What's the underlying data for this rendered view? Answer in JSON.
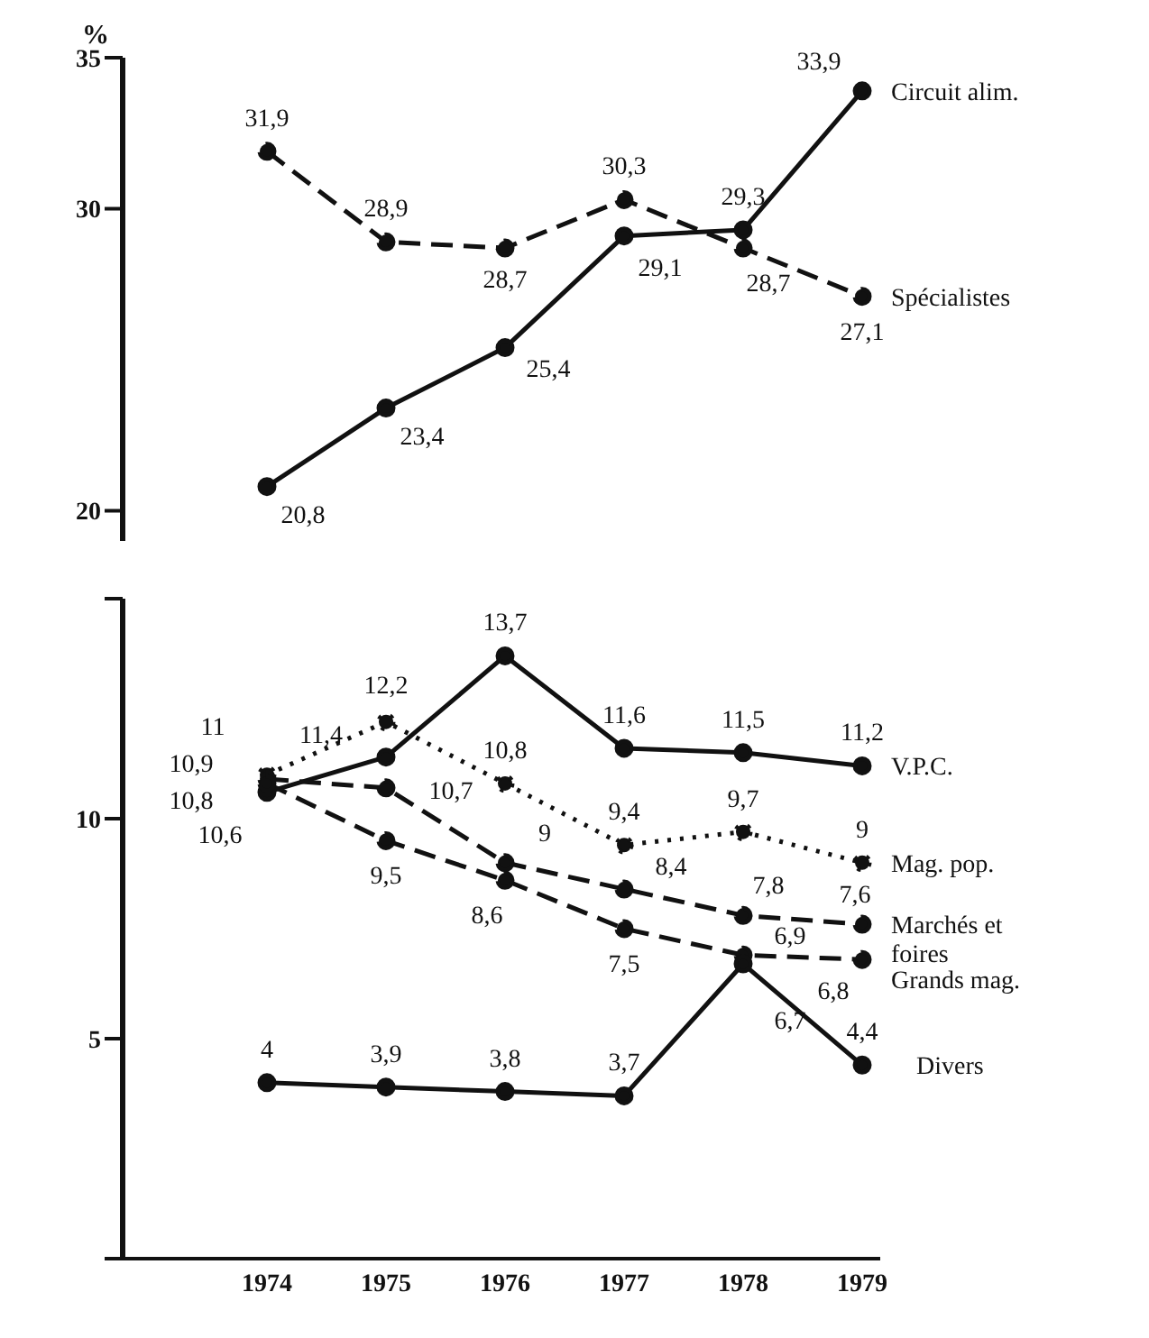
{
  "chart_data": [
    {
      "type": "line",
      "ylabel": "%",
      "categories": [
        "1974",
        "1975",
        "1976",
        "1977",
        "1978",
        "1979"
      ],
      "ylim": [
        19,
        35
      ],
      "yticks": [
        20,
        30,
        35
      ],
      "tick_labels": "y",
      "marker": "circle",
      "series": [
        {
          "name": "Circuit alim.",
          "color": "#111111",
          "line_style": "solid",
          "values": [
            20.8,
            23.4,
            25.4,
            29.1,
            29.3,
            33.9
          ],
          "value_labels": [
            "20,8",
            "23,4",
            "25,4",
            "29,1",
            "29,3",
            "33,9"
          ]
        },
        {
          "name": "Spécialistes",
          "color": "#111111",
          "line_style": "dashed",
          "values": [
            31.9,
            28.9,
            28.7,
            30.3,
            28.7,
            27.1
          ],
          "value_labels": [
            "31,9",
            "28,9",
            "28,7",
            "30,3",
            "28,7",
            "27,1"
          ]
        }
      ]
    },
    {
      "type": "line",
      "categories": [
        "1974",
        "1975",
        "1976",
        "1977",
        "1978",
        "1979"
      ],
      "ylim": [
        0,
        15
      ],
      "yticks": [
        {
          "value": 0,
          "label": null
        },
        5,
        10,
        {
          "value": 15,
          "label": null
        }
      ],
      "marker": "circle",
      "series": [
        {
          "name": "V.P.C.",
          "color": "#111111",
          "line_style": "solid",
          "values": [
            10.6,
            11.4,
            13.7,
            11.6,
            11.5,
            11.2
          ],
          "value_labels": [
            "10,6",
            "11,4",
            "13,7",
            "11,6",
            "11,5",
            "11,2"
          ]
        },
        {
          "name": "Mag. pop.",
          "color": "#111111",
          "line_style": "dotted",
          "values": [
            11,
            12.2,
            10.8,
            9.4,
            9.7,
            9
          ],
          "value_labels": [
            "11",
            "12,2",
            "10,8",
            "9,4",
            "9,7",
            "9"
          ]
        },
        {
          "name": "Marchés et foires",
          "color": "#111111",
          "line_style": "dashed",
          "values": [
            10.9,
            10.7,
            9,
            8.4,
            7.8,
            7.6
          ],
          "value_labels": [
            "10,9",
            "10,7",
            "9",
            "8,4",
            "7,8",
            "7,6"
          ]
        },
        {
          "name": "Grands mag.",
          "color": "#111111",
          "line_style": "dashed",
          "values": [
            10.8,
            9.5,
            8.6,
            7.5,
            6.9,
            6.8
          ],
          "value_labels": [
            "10,8",
            "9,5",
            "8,6",
            "7,5",
            "6,9",
            "6,8"
          ]
        },
        {
          "name": "Divers",
          "color": "#111111",
          "line_style": "solid",
          "values": [
            4,
            3.9,
            3.8,
            3.7,
            6.7,
            4.4
          ],
          "value_labels": [
            "4",
            "3,9",
            "3,8",
            "3,7",
            "6,7",
            "4,4"
          ]
        }
      ]
    }
  ]
}
